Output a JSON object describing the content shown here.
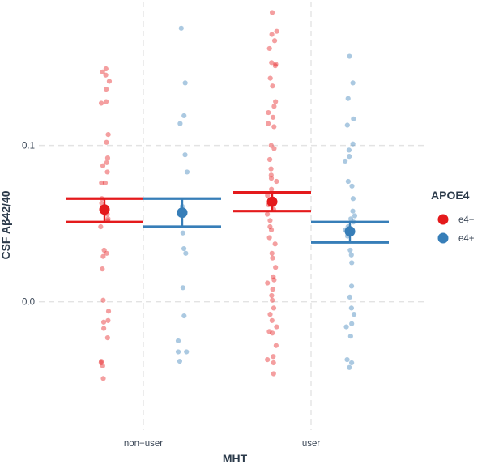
{
  "chart_data": {
    "type": "scatter",
    "xlabel": "MHT",
    "ylabel": "CSF Aβ42/40",
    "categories": [
      "non−user",
      "user"
    ],
    "ylim": [
      -0.082,
      0.192
    ],
    "y_ticks": [
      0.0,
      0.1
    ],
    "y_tick_labels": [
      "0.0",
      "0.1"
    ],
    "grid": true,
    "legend": {
      "title": "APOE4",
      "placement": "right",
      "entries": [
        {
          "label": "e4−",
          "color": "#e41a1c"
        },
        {
          "label": "e4+",
          "color": "#377eb8"
        }
      ]
    },
    "series": [
      {
        "name": "e4−",
        "color": "#e41a1c",
        "summary": [
          {
            "category": "non−user",
            "mean": 0.059,
            "lower": 0.051,
            "upper": 0.066
          },
          {
            "category": "user",
            "mean": 0.064,
            "lower": 0.058,
            "upper": 0.07
          }
        ],
        "points": {
          "non−user": [
            0.149,
            0.147,
            0.145,
            0.141,
            0.136,
            0.128,
            0.127,
            0.107,
            0.102,
            0.092,
            0.089,
            0.087,
            0.083,
            0.076,
            0.076,
            0.066,
            0.063,
            0.056,
            0.053,
            0.052,
            0.048,
            0.033,
            0.031,
            0.029,
            0.021,
            0.001,
            -0.006,
            -0.012,
            -0.013,
            -0.017,
            -0.023,
            -0.038,
            -0.039,
            -0.041,
            -0.049
          ],
          "user": [
            0.185,
            0.173,
            0.171,
            0.167,
            0.162,
            0.153,
            0.152,
            0.151,
            0.143,
            0.138,
            0.128,
            0.125,
            0.121,
            0.118,
            0.114,
            0.112,
            0.1,
            0.098,
            0.091,
            0.085,
            0.081,
            0.079,
            0.077,
            0.072,
            0.068,
            0.064,
            0.062,
            0.059,
            0.056,
            0.052,
            0.048,
            0.046,
            0.041,
            0.037,
            0.031,
            0.028,
            0.022,
            0.016,
            0.014,
            0.012,
            0.008,
            0.004,
            0.001,
            -0.004,
            -0.008,
            -0.012,
            -0.016,
            -0.019,
            -0.02,
            -0.028,
            -0.035,
            -0.037,
            -0.039,
            -0.046
          ]
        }
      },
      {
        "name": "e4+",
        "color": "#377eb8",
        "summary": [
          {
            "category": "non−user",
            "mean": 0.057,
            "lower": 0.048,
            "upper": 0.066
          },
          {
            "category": "user",
            "mean": 0.045,
            "lower": 0.038,
            "upper": 0.051
          }
        ],
        "points": {
          "non−user": [
            0.175,
            0.14,
            0.119,
            0.114,
            0.094,
            0.083,
            0.061,
            0.056,
            0.044,
            0.034,
            0.031,
            0.009,
            -0.009,
            -0.025,
            -0.032,
            -0.032,
            -0.038
          ],
          "user": [
            0.157,
            0.14,
            0.13,
            0.117,
            0.113,
            0.101,
            0.097,
            0.093,
            0.09,
            0.077,
            0.074,
            0.066,
            0.058,
            0.055,
            0.053,
            0.051,
            0.048,
            0.046,
            0.042,
            0.033,
            0.03,
            0.025,
            0.01,
            0.003,
            -0.004,
            -0.008,
            -0.014,
            -0.016,
            -0.022,
            -0.037,
            -0.039,
            -0.042
          ]
        }
      }
    ]
  }
}
